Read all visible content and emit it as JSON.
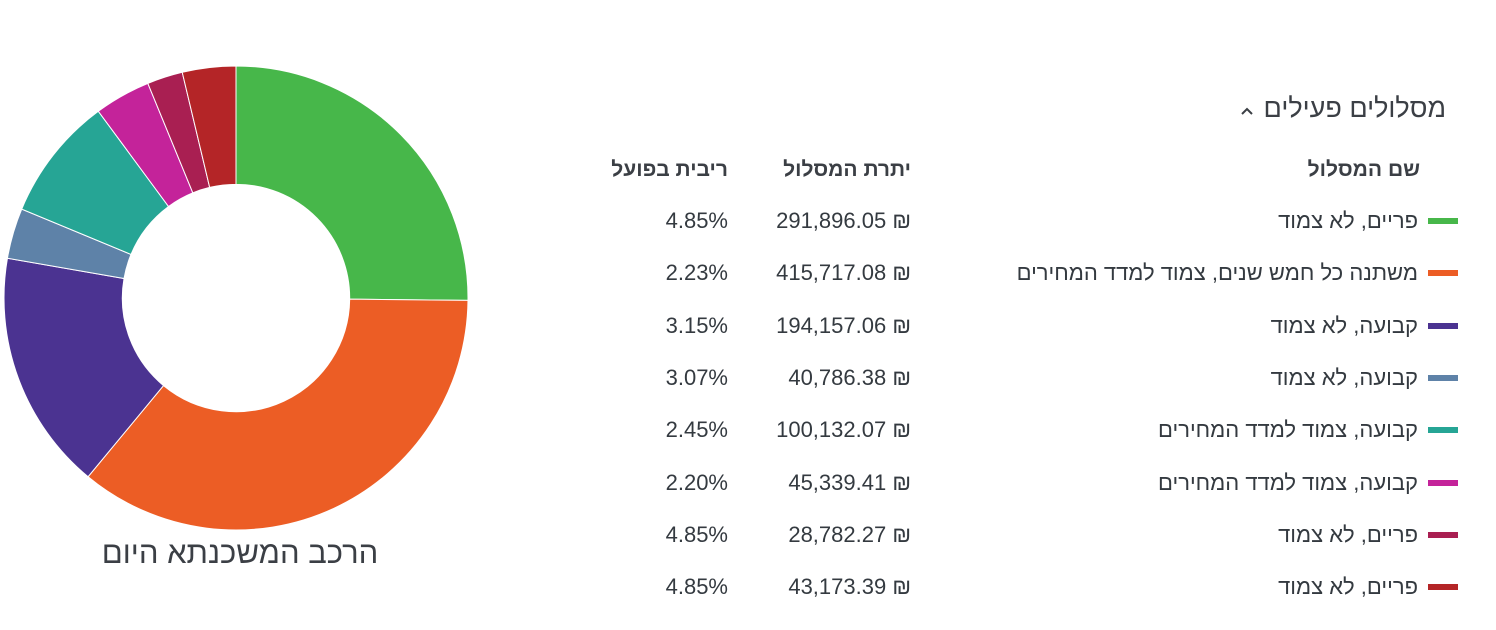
{
  "section": {
    "title": "מסלולים פעילים",
    "toggle_icon": "chevron-up-icon"
  },
  "headers": {
    "name": "שם המסלול",
    "balance": "יתרת המסלול",
    "rate": "ריבית בפועל"
  },
  "chart_caption": "הרכב המשכנתא היום",
  "tracks": [
    {
      "name": "פריים, לא צמוד",
      "balance": "291,896.05 ₪",
      "rate": "4.85%",
      "color": "#47b74a"
    },
    {
      "name": "משתנה כל חמש שנים, צמוד למדד המחירים",
      "balance": "415,717.08 ₪",
      "rate": "2.23%",
      "color": "#ec5d25"
    },
    {
      "name": "קבועה, לא צמוד",
      "balance": "194,157.06 ₪",
      "rate": "3.15%",
      "color": "#4b3391"
    },
    {
      "name": "קבועה, לא צמוד",
      "balance": "40,786.38 ₪",
      "rate": "3.07%",
      "color": "#5e82a8"
    },
    {
      "name": "קבועה, צמוד למדד המחירים",
      "balance": "100,132.07 ₪",
      "rate": "2.45%",
      "color": "#26a595"
    },
    {
      "name": "קבועה, צמוד למדד המחירים",
      "balance": "45,339.41 ₪",
      "rate": "2.20%",
      "color": "#c4239a"
    },
    {
      "name": "פריים, לא צמוד",
      "balance": "28,782.27 ₪",
      "rate": "4.85%",
      "color": "#a91f52"
    },
    {
      "name": "פריים, לא צמוד",
      "balance": "43,173.39 ₪",
      "rate": "4.85%",
      "color": "#b42527"
    }
  ],
  "chart_data": {
    "type": "pie",
    "title": "הרכב המשכנתא היום",
    "hole": 0.49,
    "categories": [
      "פריים, לא צמוד",
      "משתנה כל חמש שנים, צמוד למדד המחירים",
      "קבועה, לא צמוד",
      "קבועה, לא צמוד",
      "קבועה, צמוד למדד המחירים",
      "קבועה, צמוד למדד המחירים",
      "פריים, לא צמוד",
      "פריים, לא צמוד"
    ],
    "values": [
      291896.05,
      415717.08,
      194157.06,
      40786.38,
      100132.07,
      45339.41,
      28782.27,
      43173.39
    ],
    "colors": [
      "#47b74a",
      "#ec5d25",
      "#4b3391",
      "#5e82a8",
      "#26a595",
      "#c4239a",
      "#a91f52",
      "#b42527"
    ],
    "start_angle_deg": 90,
    "direction": "clockwise"
  }
}
